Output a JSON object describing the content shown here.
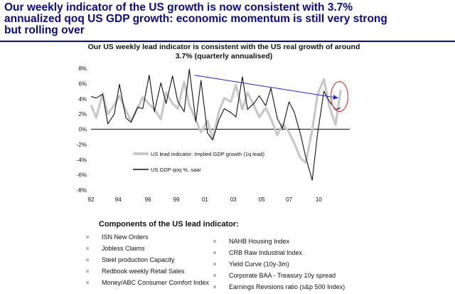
{
  "headline": {
    "lines": [
      "Our weekly indicator of the US growth is now consistent with 3.7%",
      "annualized qoq US GDP growth: economic momentum is still very strong",
      "but rolling over"
    ]
  },
  "chart_data": {
    "type": "line",
    "title_lines": [
      "Our US weekly lead indicator is consistent with the US real growth of around",
      "3.7% (quarterly annualised)"
    ],
    "xlabel": "",
    "ylabel": "",
    "xlim": [
      1992,
      2012
    ],
    "ylim": [
      -8,
      8
    ],
    "x_tick_labels": [
      "92",
      "94",
      "96",
      "99",
      "01",
      "03",
      "05",
      "07",
      "10"
    ],
    "x_tick_values": [
      1992,
      1994.1,
      1996.4,
      1998.6,
      2000.8,
      2003.0,
      2005.2,
      2007.3,
      2009.6
    ],
    "y_tick_labels": [
      "8%",
      "6%",
      "4%",
      "2%",
      "0%",
      "-2%",
      "-4%",
      "-6%",
      "-8%"
    ],
    "y_tick_values": [
      8,
      6,
      4,
      2,
      0,
      -2,
      -4,
      -6,
      -8
    ],
    "legend_position": "lower-left",
    "series": [
      {
        "name": "US lead indicator: Implied GDP growth (1q lead)",
        "color": "#c8c8c8",
        "x": [
          1992.0,
          1992.4,
          1992.9,
          1993.3,
          1993.8,
          1994.2,
          1994.7,
          1995.1,
          1995.6,
          1996.0,
          1996.5,
          1996.9,
          1997.4,
          1997.8,
          1998.3,
          1998.7,
          1999.2,
          1999.6,
          2000.1,
          2000.5,
          2001.0,
          2001.4,
          2001.9,
          2002.3,
          2002.8,
          2003.2,
          2003.7,
          2004.1,
          2004.6,
          2005.0,
          2005.5,
          2005.9,
          2006.4,
          2006.8,
          2007.3,
          2007.7,
          2008.2,
          2008.6,
          2009.1,
          2009.5,
          2010.0,
          2010.4,
          2010.9,
          2011.3
        ],
        "y": [
          3.2,
          1.5,
          4.7,
          2.0,
          3.2,
          4.4,
          2.4,
          1.1,
          2.7,
          4.2,
          3.3,
          2.6,
          1.3,
          4.8,
          3.4,
          2.7,
          6.2,
          3.2,
          1.2,
          -0.4,
          1.1,
          -1.3,
          2.4,
          4.1,
          3.6,
          5.8,
          2.6,
          4.8,
          3.1,
          1.6,
          2.8,
          1.4,
          -0.8,
          0.7,
          -0.4,
          -1.8,
          -3.8,
          -4.4,
          -0.1,
          4.5,
          6.6,
          3.1,
          0.6,
          5.2
        ]
      },
      {
        "name": "US GDP qoq %, saar",
        "color": "#111111",
        "x": [
          1992.0,
          1992.4,
          1992.9,
          1993.3,
          1993.8,
          1994.2,
          1994.7,
          1995.1,
          1995.6,
          1996.0,
          1996.5,
          1996.9,
          1997.4,
          1997.8,
          1998.3,
          1998.7,
          1999.2,
          1999.6,
          2000.1,
          2000.5,
          2001.0,
          2001.4,
          2001.9,
          2002.3,
          2002.8,
          2003.2,
          2003.7,
          2004.1,
          2004.6,
          2005.0,
          2005.5,
          2005.9,
          2006.4,
          2006.8,
          2007.3,
          2007.7,
          2008.2,
          2008.6,
          2009.1,
          2009.5,
          2010.0,
          2010.4,
          2010.9,
          2011.3
        ],
        "y": [
          4.3,
          4.1,
          4.6,
          0.7,
          2.0,
          5.9,
          1.5,
          0.9,
          2.9,
          2.7,
          7.1,
          2.3,
          6.1,
          3.4,
          7.0,
          3.7,
          2.3,
          7.9,
          1.0,
          6.4,
          -0.5,
          -1.4,
          1.3,
          2.7,
          2.2,
          1.6,
          6.9,
          2.6,
          3.4,
          4.4,
          3.1,
          5.4,
          1.4,
          0.1,
          3.6,
          2.3,
          -0.7,
          -3.7,
          -6.7,
          -0.7,
          5.0,
          3.7,
          2.6,
          2.8
        ]
      }
    ],
    "annotations": [
      {
        "type": "arrow",
        "color": "#2626d9",
        "from": [
          2000.0,
          7.1
        ],
        "to": [
          2011.1,
          4.1
        ]
      },
      {
        "type": "ellipse",
        "color": "#e23c3c",
        "center": [
          2011.2,
          4.3
        ]
      }
    ]
  },
  "components": {
    "title": "Components of the US lead indicator:",
    "left": [
      "ISN New Orders",
      "Jobless Claims",
      "Steel production Capacity",
      "Redbook weekly Retail Sales",
      "Money/ABC Consumer Comfort Index"
    ],
    "right": [
      "NAHB Housing Index",
      "CRB Raw Industrial Index",
      "Yield Curve (10y-3m)",
      "Corporate BAA - Treasury 10y spread",
      "Earnings Revisions ratio (s&p 500 Index)"
    ]
  }
}
